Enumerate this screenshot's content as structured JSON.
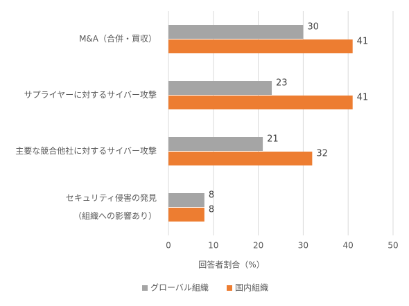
{
  "chart_data": {
    "type": "bar",
    "orientation": "horizontal",
    "categories": [
      [
        "M&A（合併・買収）"
      ],
      [
        "サプライヤーに対するサイバー攻撃"
      ],
      [
        "主要な競合他社に対するサイバー攻撃"
      ],
      [
        "セキュリティ侵害の発見",
        "（組織への影響あり）"
      ]
    ],
    "series": [
      {
        "name": "グローバル組織",
        "color": "#a5a5a5",
        "values": [
          30,
          23,
          21,
          8
        ]
      },
      {
        "name": "国内組織",
        "color": "#ed7d31",
        "values": [
          41,
          41,
          32,
          8
        ]
      }
    ],
    "x_label": "回答者割合（%）",
    "xlim": [
      0,
      50
    ],
    "xticks": [
      0,
      10,
      20,
      30,
      40,
      50
    ],
    "grid": true,
    "legend": "bottom"
  }
}
